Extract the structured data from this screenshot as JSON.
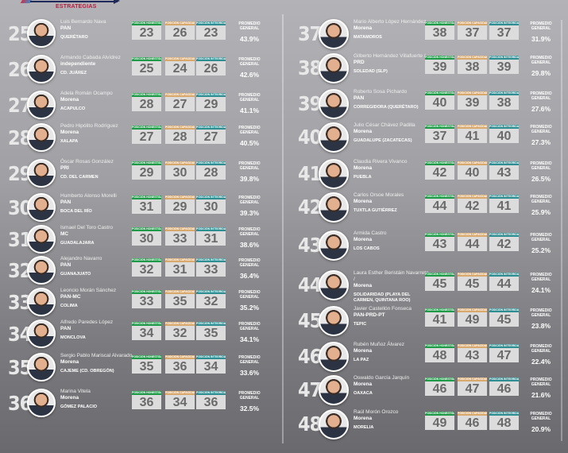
{
  "header": {
    "brand": "ESTRATEGIAS"
  },
  "labels": {
    "honestidad": "POSICIÓN HONESTIDAD",
    "capacidad": "POSICIÓN CAPACIDAD",
    "integridad": "POSICIÓN INTEGRIDAD",
    "promedio": "PROMEDIO GENERAL"
  },
  "colors": {
    "honestidad": "#1f9a48",
    "capacidad": "#d9a86c",
    "integridad": "#2f8e92"
  },
  "rows": [
    {
      "rank": "25",
      "name": "Luis Bernardo Nava",
      "party": "PAN",
      "city": "QUERÉTARO",
      "h": "23",
      "c": "26",
      "i": "23",
      "avg": "43.9%"
    },
    {
      "rank": "26",
      "name": "Armando Cabada Alvídrez",
      "party": "independiente",
      "city": "CD. JUÁREZ",
      "h": "25",
      "c": "24",
      "i": "26",
      "avg": "42.6%"
    },
    {
      "rank": "27",
      "name": "Adela Román Ocampo",
      "party": "Morena",
      "city": "ACAPULCO",
      "h": "28",
      "c": "27",
      "i": "29",
      "avg": "41.1%"
    },
    {
      "rank": "28",
      "name": "Pedro Hipólito Rodríguez",
      "party": "Morena",
      "city": "XALAPA",
      "h": "27",
      "c": "28",
      "i": "27",
      "avg": "40.5%"
    },
    {
      "rank": "29",
      "name": "Óscar Rosas González",
      "party": "PRI",
      "city": "CD. DEL CARMEN",
      "h": "29",
      "c": "30",
      "i": "28",
      "avg": "39.8%"
    },
    {
      "rank": "30",
      "name": "Humberto Alonso Morelli",
      "party": "PAN",
      "city": "BOCA DEL RÍO",
      "h": "31",
      "c": "29",
      "i": "30",
      "avg": "39.3%"
    },
    {
      "rank": "31",
      "name": "Ismael Del Toro Castro",
      "party": "MC",
      "city": "GUADALAJARA",
      "h": "30",
      "c": "33",
      "i": "31",
      "avg": "38.6%"
    },
    {
      "rank": "32",
      "name": "Alejandro Navarro",
      "party": "PAN",
      "city": "GUANAJUATO",
      "h": "32",
      "c": "31",
      "i": "33",
      "avg": "36.4%"
    },
    {
      "rank": "33",
      "name": "Leoncio Morán Sánchez",
      "party": "PAN-MC",
      "city": "COLIMA",
      "h": "33",
      "c": "35",
      "i": "32",
      "avg": "35.2%"
    },
    {
      "rank": "34",
      "name": "Alfredo Paredes López",
      "party": "PAN",
      "city": "MONCLOVA",
      "h": "34",
      "c": "32",
      "i": "35",
      "avg": "34.1%"
    },
    {
      "rank": "35",
      "name": "Sergio Pablo Mariscal Alvarado",
      "party": "Morena",
      "city": "CAJEME (CD. OBREGÓN)",
      "h": "35",
      "c": "36",
      "i": "34",
      "avg": "33.6%"
    },
    {
      "rank": "36",
      "name": "Marina Vitela",
      "party": "Morena",
      "city": "GÓMEZ PALACIO",
      "h": "36",
      "c": "34",
      "i": "36",
      "avg": "32.5%"
    },
    {
      "rank": "37",
      "name": "Mario Alberto López Hernández",
      "party": "Morena",
      "city": "MATAMOROS",
      "h": "38",
      "c": "37",
      "i": "37",
      "avg": "31.9%"
    },
    {
      "rank": "38",
      "name": "Gilberto Hernández Villafuerte /",
      "party": "PRD",
      "city": "SOLEDAD (SLP)",
      "h": "39",
      "c": "38",
      "i": "39",
      "avg": "29.8%"
    },
    {
      "rank": "39",
      "name": "Roberto Sosa Pichardo",
      "party": "PAN",
      "city": "CORREGIDORA (QUERÉTARO)",
      "h": "40",
      "c": "39",
      "i": "38",
      "avg": "27.6%"
    },
    {
      "rank": "40",
      "name": "Julio César Chávez Padilla",
      "party": "Morena",
      "city": "GUADALUPE (ZACATECAS)",
      "h": "37",
      "c": "41",
      "i": "40",
      "avg": "27.3%"
    },
    {
      "rank": "41",
      "name": "Claudia Rivera Vivanco",
      "party": "Morena",
      "city": "PUEBLA",
      "h": "42",
      "c": "40",
      "i": "43",
      "avg": "26.5%"
    },
    {
      "rank": "42",
      "name": "Carlos Orsoe Morales",
      "party": "Morena",
      "city": "TUXTLA GUTIÉRREZ",
      "h": "44",
      "c": "42",
      "i": "41",
      "avg": "25.9%"
    },
    {
      "rank": "43",
      "name": "Armida Castro",
      "party": "Morena",
      "city": "LOS CABOS",
      "h": "43",
      "c": "44",
      "i": "42",
      "avg": "25.2%"
    },
    {
      "rank": "44",
      "name": "Laura Esther Beristáin Navarrete /",
      "party": "Morena",
      "city": "SOLIDARIDAD (PLAYA DEL CARMEN, QUINTANA ROO)",
      "h": "45",
      "c": "45",
      "i": "44",
      "avg": "24.1%"
    },
    {
      "rank": "45",
      "name": "Javier Castellón Fonseca",
      "party": "PAN-PRD-PT",
      "city": "TEPIC",
      "h": "41",
      "c": "49",
      "i": "45",
      "avg": "23.8%"
    },
    {
      "rank": "46",
      "name": "Rubén Muñoz Álvarez",
      "party": "Morena",
      "city": "LA PAZ",
      "h": "48",
      "c": "43",
      "i": "47",
      "avg": "22.4%"
    },
    {
      "rank": "47",
      "name": "Oswaldo García Jarquín",
      "party": "Morena",
      "city": "OAXACA",
      "h": "46",
      "c": "47",
      "i": "46",
      "avg": "21.6%"
    },
    {
      "rank": "48",
      "name": "Raúl Morón Orozco",
      "party": "Morena",
      "city": "MORELIA",
      "h": "49",
      "c": "46",
      "i": "48",
      "avg": "20.9%"
    }
  ]
}
